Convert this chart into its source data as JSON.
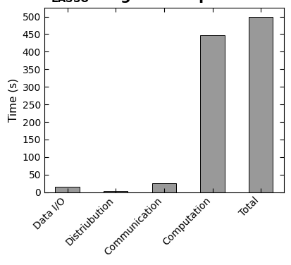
{
  "categories": [
    "Data I/O",
    "Distriubution",
    "Communication",
    "Computation",
    "Total"
  ],
  "values": [
    15,
    4,
    25,
    447,
    500
  ],
  "bar_color": "#999999",
  "bar_edge_color": "#000000",
  "ylabel": "Time (s)",
  "ylim": [
    0,
    525
  ],
  "yticks": [
    0,
    50,
    100,
    150,
    200,
    250,
    300,
    350,
    400,
    450,
    500
  ],
  "background_color": "#ffffff",
  "figure_face_color": "#ffffff",
  "title_fontsize": 15,
  "title_sub_fontsize": 11,
  "bar_width": 0.5,
  "tick_fontsize": 10,
  "ylabel_fontsize": 11
}
